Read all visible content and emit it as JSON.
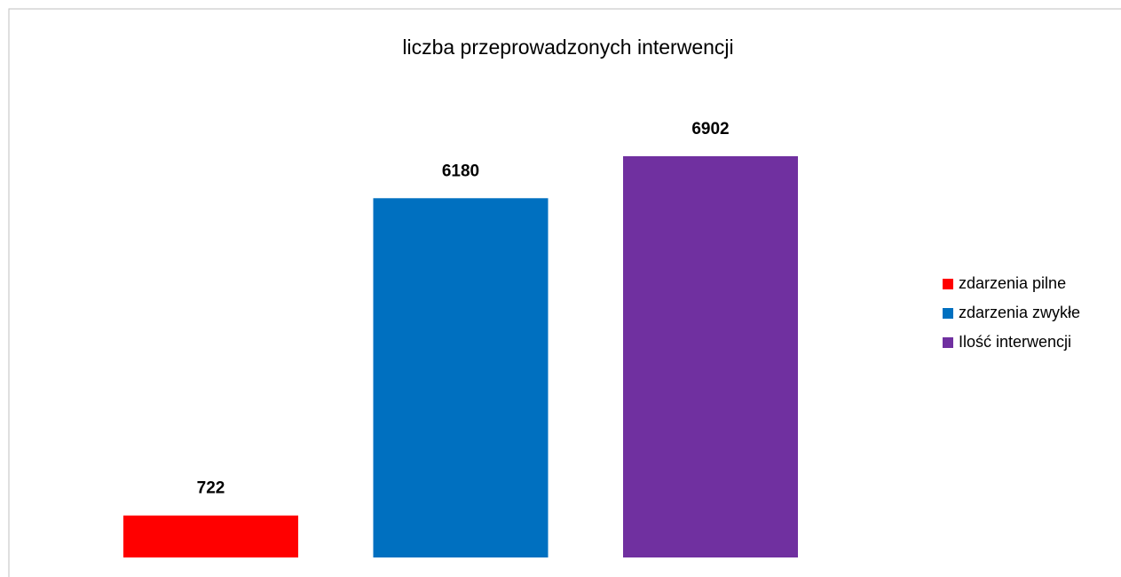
{
  "chart_data": {
    "type": "bar",
    "title": "liczba przeprowadzonych interwencji",
    "series": [
      {
        "name": "zdarzenia pilne",
        "color": "#ff0000",
        "values": [
          722
        ]
      },
      {
        "name": "zdarzenia zwykłe",
        "color": "#0070c0",
        "values": [
          6180
        ]
      },
      {
        "name": "Ilość interwencji",
        "color": "#7030a0",
        "values": [
          6902
        ]
      }
    ],
    "legend": "right"
  }
}
